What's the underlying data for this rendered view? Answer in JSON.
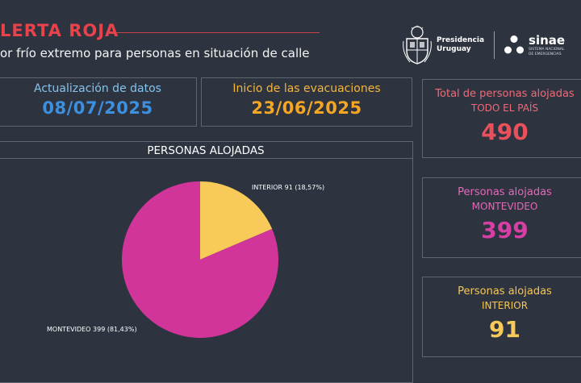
{
  "header": {
    "title": "LERTA ROJA",
    "subtitle": "or frío extremo para personas en situación de calle",
    "colors": {
      "title": "#e8424b"
    }
  },
  "logos": {
    "presidencia_name": "Presidencia",
    "presidencia_country": "Uruguay",
    "sinae_name": "sinae",
    "sinae_sub_1": "SISTEMA NACIONAL",
    "sinae_sub_2": "DE EMERGENCIAS",
    "icons": [
      "uruguay-shield-icon",
      "sinae-triad-icon"
    ]
  },
  "dates": {
    "update_label": "Actualización de datos",
    "update_value": "08/07/2025",
    "evac_label": "Inicio de las evacuaciones",
    "evac_value": "23/06/2025",
    "colors": {
      "update_label": "#84c3ee",
      "update_value": "#3d8fe0",
      "evac_label": "#f5b43a",
      "evac_value": "#f5a623"
    }
  },
  "chart_data": {
    "type": "pie",
    "title": "PERSONAS ALOJADAS",
    "slices": [
      {
        "label": "INTERIOR",
        "value": 91,
        "percent_text": "18,57%",
        "color": "#f8ca5a",
        "text": "INTERIOR 91 (18,57%)"
      },
      {
        "label": "MONTEVIDEO",
        "value": 399,
        "percent_text": "81,43%",
        "color": "#d1359a",
        "text": "MONTEVIDEO 399 (81,43%)"
      }
    ]
  },
  "stats": [
    {
      "label": "Total de personas alojadas",
      "sub": "TODO EL PAÍS",
      "value": "490",
      "label_color": "#f06a78",
      "value_color": "#e8505c"
    },
    {
      "label": "Personas alojadas",
      "sub": "MONTEVIDEO",
      "value": "399",
      "label_color": "#e468b8",
      "value_color": "#d63fa3"
    },
    {
      "label": "Personas alojadas",
      "sub": "INTERIOR",
      "value": "91",
      "label_color": "#f6c654",
      "value_color": "#f8ca5a"
    }
  ]
}
